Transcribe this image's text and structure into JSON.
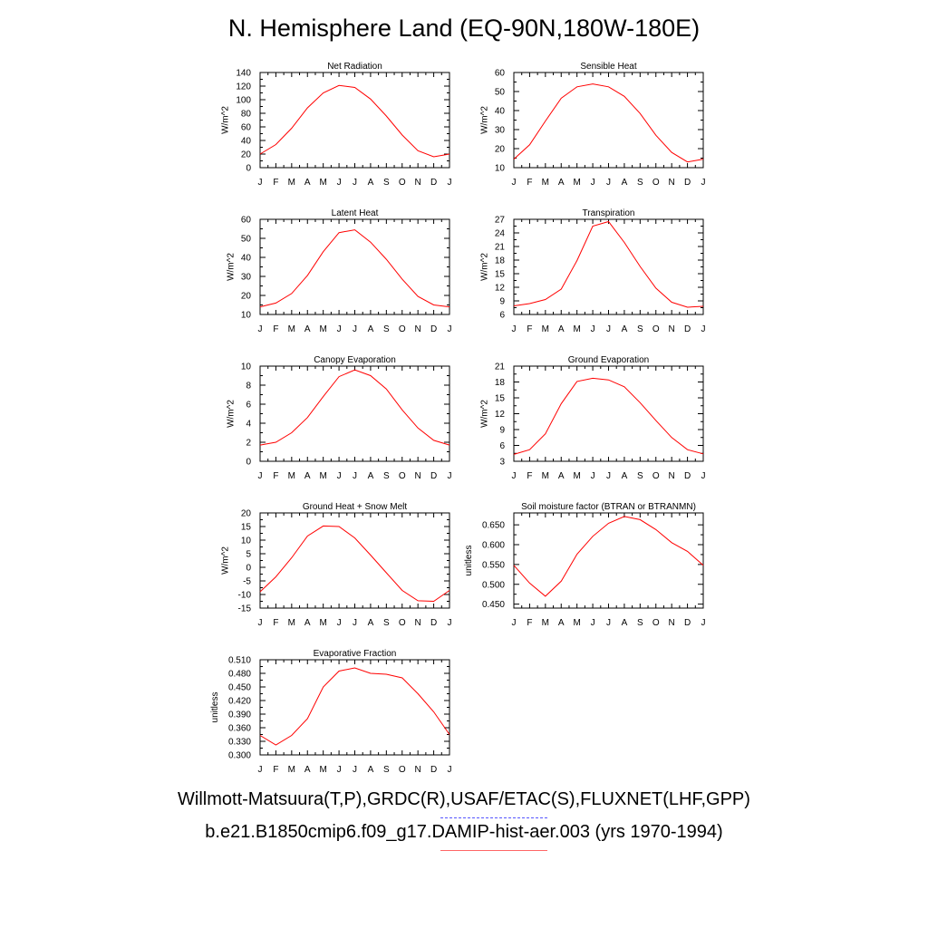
{
  "title": "N. Hemisphere Land (EQ-90N,180W-180E)",
  "legend": {
    "observations": "Willmott-Matsuura(T,P),GRDC(R),USAF/ETAC(S),FLUXNET(LHF,GPP)",
    "observations_color": "#5555ff",
    "model": "b.e21.B1850cmip6.f09_g17.DAMIP-hist-aer.003 (yrs 1970-1994)",
    "model_color": "#ff0000"
  },
  "chart_data": [
    {
      "type": "line",
      "title": "Net Radiation",
      "ylabel": "W/m^2",
      "x": [
        "J",
        "F",
        "M",
        "A",
        "M",
        "J",
        "J",
        "A",
        "S",
        "O",
        "N",
        "D",
        "J"
      ],
      "ylim": [
        0,
        140
      ],
      "yticks": [
        "0",
        "20",
        "40",
        "60",
        "80",
        "100",
        "120",
        "140"
      ],
      "series": [
        {
          "values": [
            20,
            34,
            58,
            88,
            110,
            121,
            118,
            101,
            76,
            48,
            25,
            16,
            20
          ]
        }
      ]
    },
    {
      "type": "line",
      "title": "Sensible Heat",
      "ylabel": "W/m^2",
      "x": [
        "J",
        "F",
        "M",
        "A",
        "M",
        "J",
        "J",
        "A",
        "S",
        "O",
        "N",
        "D",
        "J"
      ],
      "ylim": [
        10,
        60
      ],
      "yticks": [
        "10",
        "20",
        "30",
        "40",
        "50",
        "60"
      ],
      "series": [
        {
          "values": [
            14.5,
            22,
            34.5,
            46.5,
            52.5,
            54,
            52.5,
            47.5,
            38.5,
            27,
            18,
            13,
            14.5
          ]
        }
      ]
    },
    {
      "type": "line",
      "title": "Latent Heat",
      "ylabel": "W/m^2",
      "x": [
        "J",
        "F",
        "M",
        "A",
        "M",
        "J",
        "J",
        "A",
        "S",
        "O",
        "N",
        "D",
        "J"
      ],
      "ylim": [
        10,
        60
      ],
      "yticks": [
        "10",
        "20",
        "30",
        "40",
        "50",
        "60"
      ],
      "series": [
        {
          "values": [
            14,
            16,
            21,
            30.5,
            43,
            53,
            54.5,
            48,
            39,
            28.5,
            19.5,
            15,
            14
          ]
        }
      ]
    },
    {
      "type": "line",
      "title": "Transpiration",
      "ylabel": "W/m^2",
      "x": [
        "J",
        "F",
        "M",
        "A",
        "M",
        "J",
        "J",
        "A",
        "S",
        "O",
        "N",
        "D",
        "J"
      ],
      "ylim": [
        6,
        27
      ],
      "yticks": [
        "6",
        "9",
        "12",
        "15",
        "18",
        "21",
        "24",
        "27"
      ],
      "series": [
        {
          "values": [
            7.9,
            8.4,
            9.3,
            11.6,
            17.9,
            25.5,
            26.5,
            21.9,
            16.6,
            11.8,
            8.7,
            7.6,
            7.8
          ]
        }
      ]
    },
    {
      "type": "line",
      "title": "Canopy Evaporation",
      "ylabel": "W/m^2",
      "x": [
        "J",
        "F",
        "M",
        "A",
        "M",
        "J",
        "J",
        "A",
        "S",
        "O",
        "N",
        "D",
        "J"
      ],
      "ylim": [
        0,
        10
      ],
      "yticks": [
        "0",
        "2",
        "4",
        "6",
        "8",
        "10"
      ],
      "series": [
        {
          "values": [
            1.7,
            2.0,
            3.0,
            4.6,
            6.8,
            8.9,
            9.6,
            9.0,
            7.6,
            5.4,
            3.5,
            2.2,
            1.7
          ]
        }
      ]
    },
    {
      "type": "line",
      "title": "Ground Evaporation",
      "ylabel": "W/m^2",
      "x": [
        "J",
        "F",
        "M",
        "A",
        "M",
        "J",
        "J",
        "A",
        "S",
        "O",
        "N",
        "D",
        "J"
      ],
      "ylim": [
        3,
        21
      ],
      "yticks": [
        "3",
        "6",
        "9",
        "12",
        "15",
        "18",
        "21"
      ],
      "series": [
        {
          "values": [
            4.3,
            5.2,
            8.2,
            13.9,
            18.1,
            18.7,
            18.4,
            17.1,
            14.1,
            10.7,
            7.5,
            5.2,
            4.4
          ]
        }
      ]
    },
    {
      "type": "line",
      "title": "Ground Heat + Snow Melt",
      "ylabel": "W/m^2",
      "x": [
        "J",
        "F",
        "M",
        "A",
        "M",
        "J",
        "J",
        "A",
        "S",
        "O",
        "N",
        "D",
        "J"
      ],
      "ylim": [
        -15,
        20
      ],
      "yticks": [
        "-15",
        "-10",
        "-5",
        "0",
        "5",
        "10",
        "15",
        "20"
      ],
      "series": [
        {
          "values": [
            -9,
            -3.5,
            3.5,
            11.5,
            15.2,
            15,
            10.8,
            4.5,
            -2,
            -8.5,
            -12.3,
            -12.5,
            -8.5
          ]
        }
      ]
    },
    {
      "type": "line",
      "title": "Soil moisture factor (BTRAN or BTRANMN)",
      "ylabel": "unitless",
      "x": [
        "J",
        "F",
        "M",
        "A",
        "M",
        "J",
        "J",
        "A",
        "S",
        "O",
        "N",
        "D",
        "J"
      ],
      "ylim": [
        0.44,
        0.68
      ],
      "yticks": [
        "0.450",
        "0.500",
        "0.550",
        "0.600",
        "0.650"
      ],
      "series": [
        {
          "values": [
            0.548,
            0.503,
            0.47,
            0.508,
            0.576,
            0.621,
            0.654,
            0.671,
            0.663,
            0.638,
            0.605,
            0.583,
            0.548
          ]
        }
      ]
    },
    {
      "type": "line",
      "title": "Evaporative Fraction",
      "ylabel": "unitless",
      "x": [
        "J",
        "F",
        "M",
        "A",
        "M",
        "J",
        "J",
        "A",
        "S",
        "O",
        "N",
        "D",
        "J"
      ],
      "ylim": [
        0.3,
        0.51
      ],
      "yticks": [
        "0.300",
        "0.330",
        "0.360",
        "0.390",
        "0.420",
        "0.450",
        "0.480",
        "0.510"
      ],
      "series": [
        {
          "values": [
            0.343,
            0.322,
            0.343,
            0.38,
            0.45,
            0.485,
            0.492,
            0.48,
            0.478,
            0.47,
            0.435,
            0.395,
            0.345
          ]
        }
      ]
    }
  ]
}
